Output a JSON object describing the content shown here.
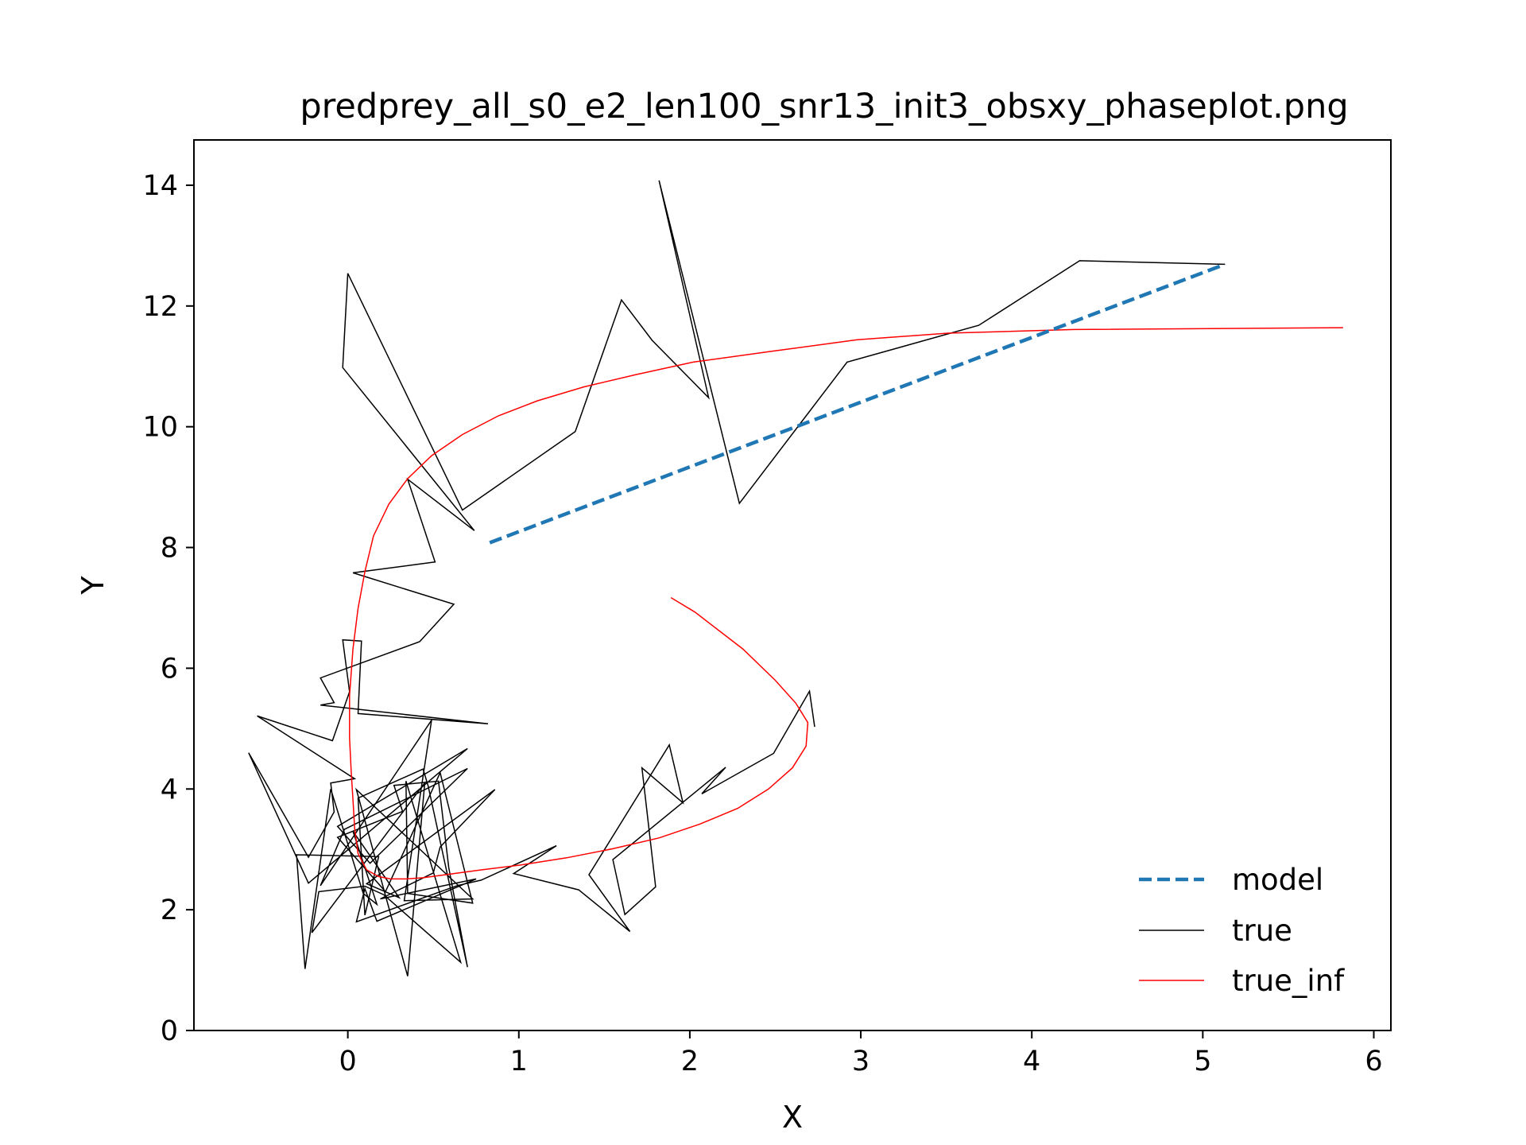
{
  "chart_data": {
    "type": "line",
    "title": "predprey_all_s0_e2_len100_snr13_init3_obsxy_phaseplot.png",
    "xlabel": "X",
    "ylabel": "Y",
    "xlim": [
      -0.9,
      6.1
    ],
    "ylim": [
      0,
      14.75
    ],
    "xticks": [
      0,
      1,
      2,
      3,
      4,
      5,
      6
    ],
    "xtick_labels": [
      "0",
      "1",
      "2",
      "3",
      "4",
      "5",
      "6"
    ],
    "yticks": [
      0,
      2,
      4,
      6,
      8,
      10,
      12,
      14
    ],
    "ytick_labels": [
      "0",
      "2",
      "4",
      "6",
      "8",
      "10",
      "12",
      "14"
    ],
    "grid": false,
    "legend_position": "lower-right",
    "series": [
      {
        "name": "model",
        "color": "#1f77b4",
        "style": "dashed",
        "points": [
          [
            0.83,
            8.08
          ],
          [
            5.13,
            12.69
          ]
        ]
      },
      {
        "name": "true",
        "color": "#000000",
        "style": "solid",
        "points": [
          [
            5.13,
            12.69
          ],
          [
            4.28,
            12.75
          ],
          [
            3.69,
            11.68
          ],
          [
            2.92,
            11.07
          ],
          [
            2.29,
            8.73
          ],
          [
            1.82,
            14.08
          ],
          [
            2.11,
            10.48
          ],
          [
            1.78,
            11.43
          ],
          [
            1.6,
            12.1
          ],
          [
            1.33,
            9.92
          ],
          [
            0.67,
            8.62
          ],
          [
            0.0,
            12.54
          ],
          [
            -0.03,
            10.98
          ],
          [
            0.74,
            8.28
          ],
          [
            0.35,
            9.13
          ],
          [
            0.51,
            7.76
          ],
          [
            0.03,
            7.58
          ],
          [
            0.62,
            7.06
          ],
          [
            0.42,
            6.44
          ],
          [
            -0.16,
            5.84
          ],
          [
            -0.08,
            5.43
          ],
          [
            -0.16,
            5.39
          ],
          [
            0.82,
            5.08
          ],
          [
            0.06,
            5.25
          ],
          [
            0.08,
            6.45
          ],
          [
            -0.03,
            6.47
          ],
          [
            0.01,
            5.61
          ],
          [
            -0.09,
            4.8
          ],
          [
            -0.53,
            5.21
          ],
          [
            0.04,
            4.17
          ],
          [
            -0.1,
            4.1
          ],
          [
            -0.08,
            3.62
          ],
          [
            -0.23,
            2.87
          ],
          [
            -0.58,
            4.6
          ],
          [
            -0.23,
            2.44
          ],
          [
            0.7,
            4.67
          ],
          [
            -0.06,
            3.38
          ],
          [
            0.13,
            2.77
          ],
          [
            0.7,
            4.34
          ],
          [
            -0.02,
            3.33
          ],
          [
            -0.16,
            2.4
          ],
          [
            0.49,
            5.14
          ],
          [
            0.33,
            2.15
          ],
          [
            0.73,
            2.18
          ],
          [
            0.05,
            3.99
          ],
          [
            0.35,
            0.9
          ],
          [
            0.45,
            4.1
          ],
          [
            -0.21,
            1.62
          ],
          [
            -0.17,
            2.3
          ],
          [
            0.1,
            2.39
          ],
          [
            0.21,
            2.25
          ],
          [
            0.66,
            1.13
          ],
          [
            0.34,
            4.13
          ],
          [
            0.35,
            2.27
          ],
          [
            0.73,
            2.11
          ],
          [
            0.54,
            4.27
          ],
          [
            0.22,
            2.3
          ],
          [
            -0.06,
            3.2
          ],
          [
            0.32,
            3.63
          ],
          [
            0.27,
            4.06
          ],
          [
            0.53,
            4.13
          ],
          [
            0.59,
            2.7
          ],
          [
            0.7,
            1.05
          ],
          [
            0.47,
            4.05
          ],
          [
            0.44,
            4.33
          ],
          [
            0.06,
            3.85
          ],
          [
            0.1,
            1.91
          ],
          [
            0.18,
            2.88
          ],
          [
            -0.3,
            2.91
          ],
          [
            -0.25,
            1.02
          ],
          [
            -0.1,
            4.0
          ],
          [
            0.09,
            2.27
          ],
          [
            0.17,
            2.09
          ],
          [
            0.03,
            3.3
          ],
          [
            0.3,
            2.2
          ],
          [
            0.11,
            2.43
          ],
          [
            0.86,
            3.99
          ],
          [
            0.54,
            3.04
          ],
          [
            0.5,
            2.61
          ],
          [
            0.19,
            2.18
          ],
          [
            0.75,
            2.51
          ],
          [
            0.17,
            1.81
          ],
          [
            0.1,
            2.35
          ],
          [
            0.05,
            1.8
          ],
          [
            0.64,
            2.4
          ],
          [
            0.78,
            2.49
          ],
          [
            1.22,
            3.06
          ],
          [
            0.97,
            2.6
          ],
          [
            1.35,
            2.33
          ],
          [
            1.65,
            1.64
          ],
          [
            1.41,
            2.58
          ],
          [
            1.88,
            4.73
          ],
          [
            1.96,
            3.77
          ],
          [
            1.72,
            4.35
          ],
          [
            1.8,
            2.38
          ],
          [
            1.62,
            1.92
          ],
          [
            1.55,
            2.83
          ],
          [
            2.21,
            4.36
          ],
          [
            2.07,
            3.92
          ],
          [
            2.49,
            4.59
          ],
          [
            2.7,
            5.62
          ],
          [
            2.73,
            5.03
          ]
        ]
      },
      {
        "name": "true_inf",
        "color": "#ff0000",
        "style": "solid",
        "points": [
          [
            5.82,
            11.64
          ],
          [
            4.25,
            11.61
          ],
          [
            3.51,
            11.55
          ],
          [
            2.98,
            11.44
          ],
          [
            2.48,
            11.25
          ],
          [
            2.02,
            11.07
          ],
          [
            1.68,
            10.86
          ],
          [
            1.38,
            10.66
          ],
          [
            1.11,
            10.43
          ],
          [
            0.88,
            10.18
          ],
          [
            0.67,
            9.87
          ],
          [
            0.49,
            9.52
          ],
          [
            0.35,
            9.14
          ],
          [
            0.24,
            8.72
          ],
          [
            0.15,
            8.19
          ],
          [
            0.1,
            7.6
          ],
          [
            0.06,
            6.99
          ],
          [
            0.03,
            6.32
          ],
          [
            0.01,
            5.55
          ],
          [
            0.01,
            4.85
          ],
          [
            0.02,
            4.28
          ],
          [
            0.03,
            3.82
          ],
          [
            0.04,
            3.35
          ],
          [
            0.06,
            2.93
          ],
          [
            0.11,
            2.66
          ],
          [
            0.18,
            2.55
          ],
          [
            0.25,
            2.51
          ],
          [
            0.34,
            2.51
          ],
          [
            0.44,
            2.53
          ],
          [
            0.6,
            2.59
          ],
          [
            0.78,
            2.66
          ],
          [
            1.01,
            2.74
          ],
          [
            1.28,
            2.86
          ],
          [
            1.55,
            3.01
          ],
          [
            1.82,
            3.19
          ],
          [
            2.06,
            3.42
          ],
          [
            2.28,
            3.68
          ],
          [
            2.46,
            4.0
          ],
          [
            2.6,
            4.35
          ],
          [
            2.68,
            4.71
          ],
          [
            2.69,
            5.1
          ],
          [
            2.62,
            5.42
          ],
          [
            2.5,
            5.8
          ],
          [
            2.31,
            6.32
          ],
          [
            2.03,
            6.93
          ],
          [
            1.89,
            7.17
          ]
        ]
      }
    ]
  }
}
